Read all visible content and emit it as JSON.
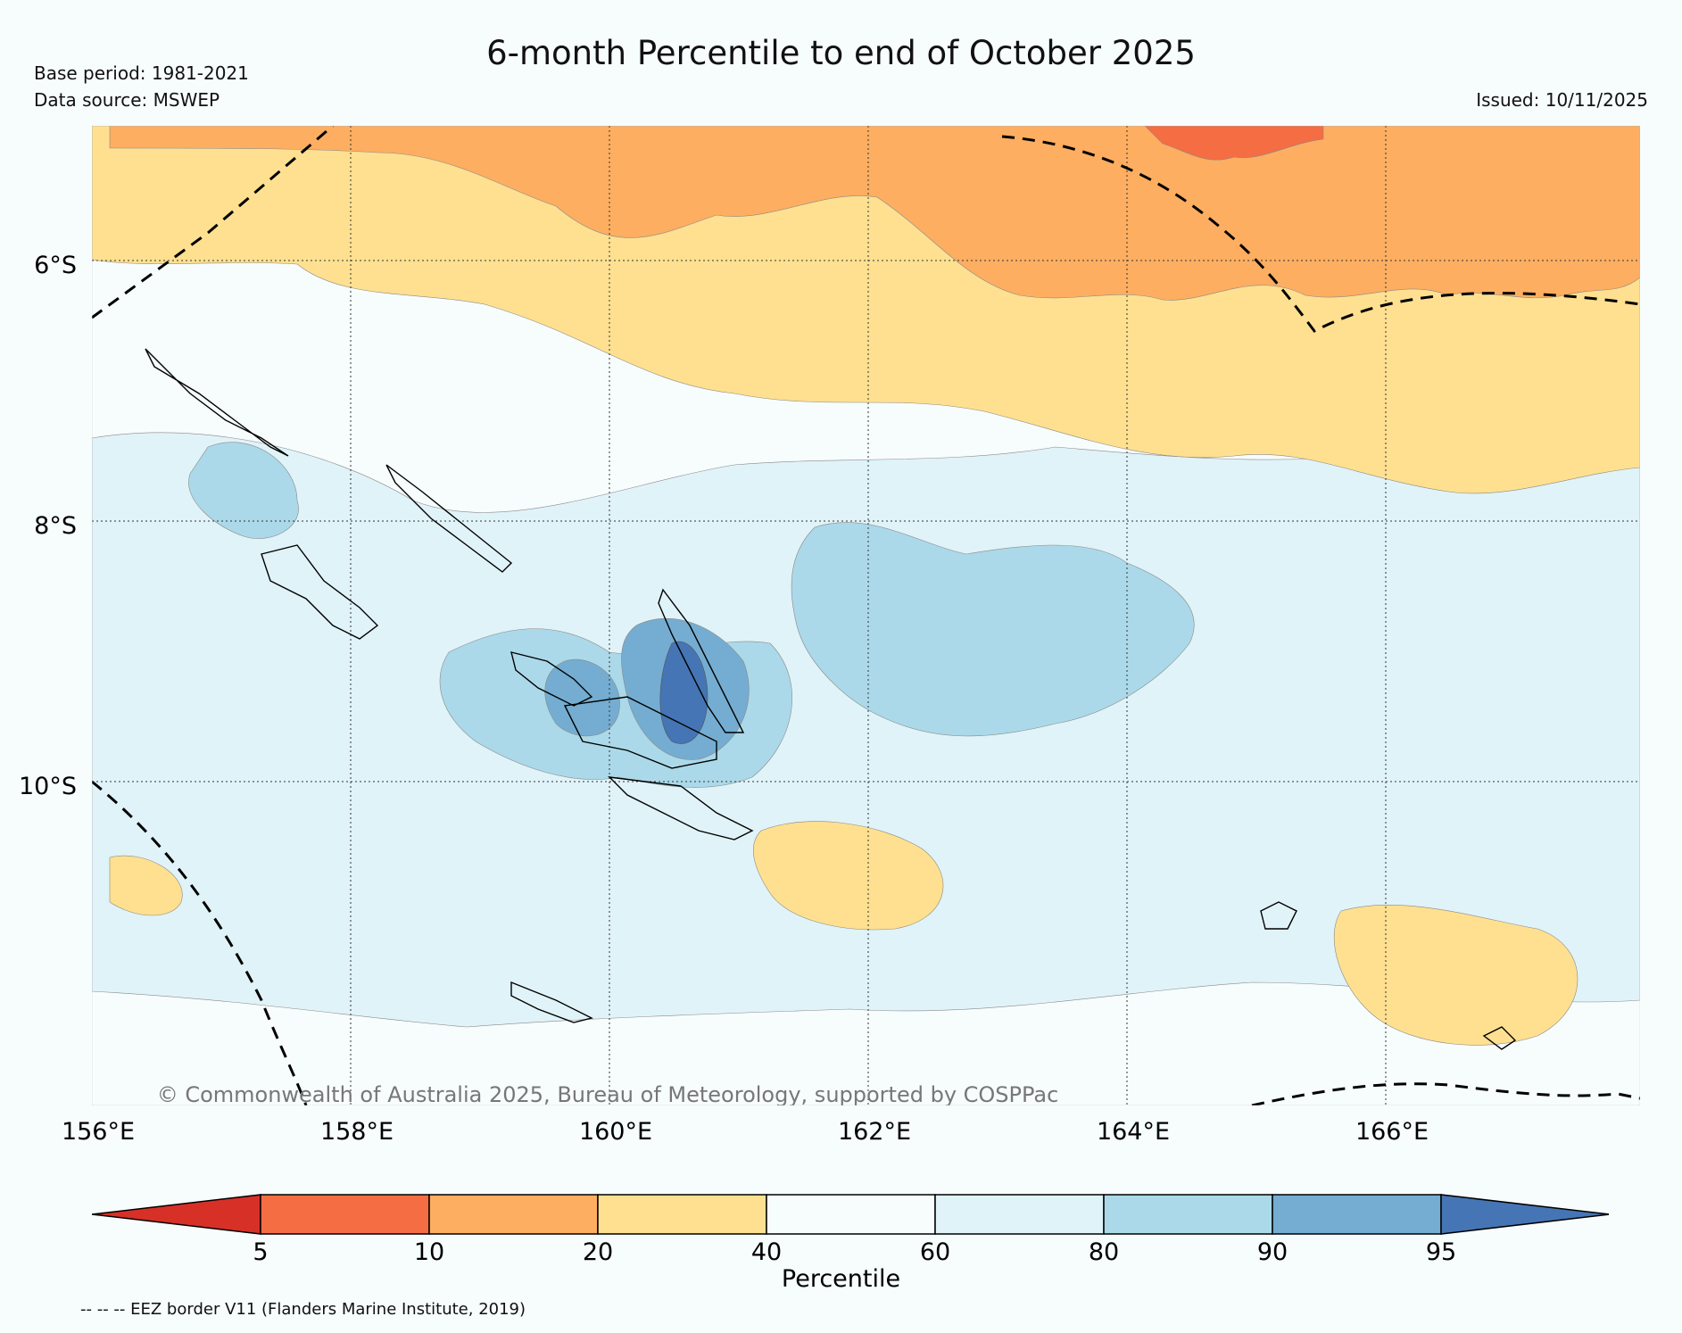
{
  "title": "6-month Percentile to end of October 2025",
  "base_period": "Base period: 1981-2021",
  "data_source": "Data source: MSWEP",
  "issued": "Issued: 10/11/2025",
  "copyright": "© Commonwealth of Australia 2025, Bureau of Meteorology, supported by COSPPac",
  "lat_labels": [
    "6°S",
    "8°S",
    "10°S"
  ],
  "lon_labels": [
    "156°E",
    "158°E",
    "160°E",
    "162°E",
    "164°E",
    "166°E"
  ],
  "colorbar": {
    "label": "Percentile",
    "ticks": [
      "5",
      "10",
      "20",
      "40",
      "60",
      "80",
      "90",
      "95"
    ],
    "colors": [
      "#d73027",
      "#f46d43",
      "#fdae61",
      "#fee090",
      "#f7fcfc",
      "#e0f3f8",
      "#abd9e9",
      "#74add1",
      "#4575b4"
    ]
  },
  "eez_note": "-- -- -- EEZ border V11 (Flanders Marine Institute, 2019)"
}
